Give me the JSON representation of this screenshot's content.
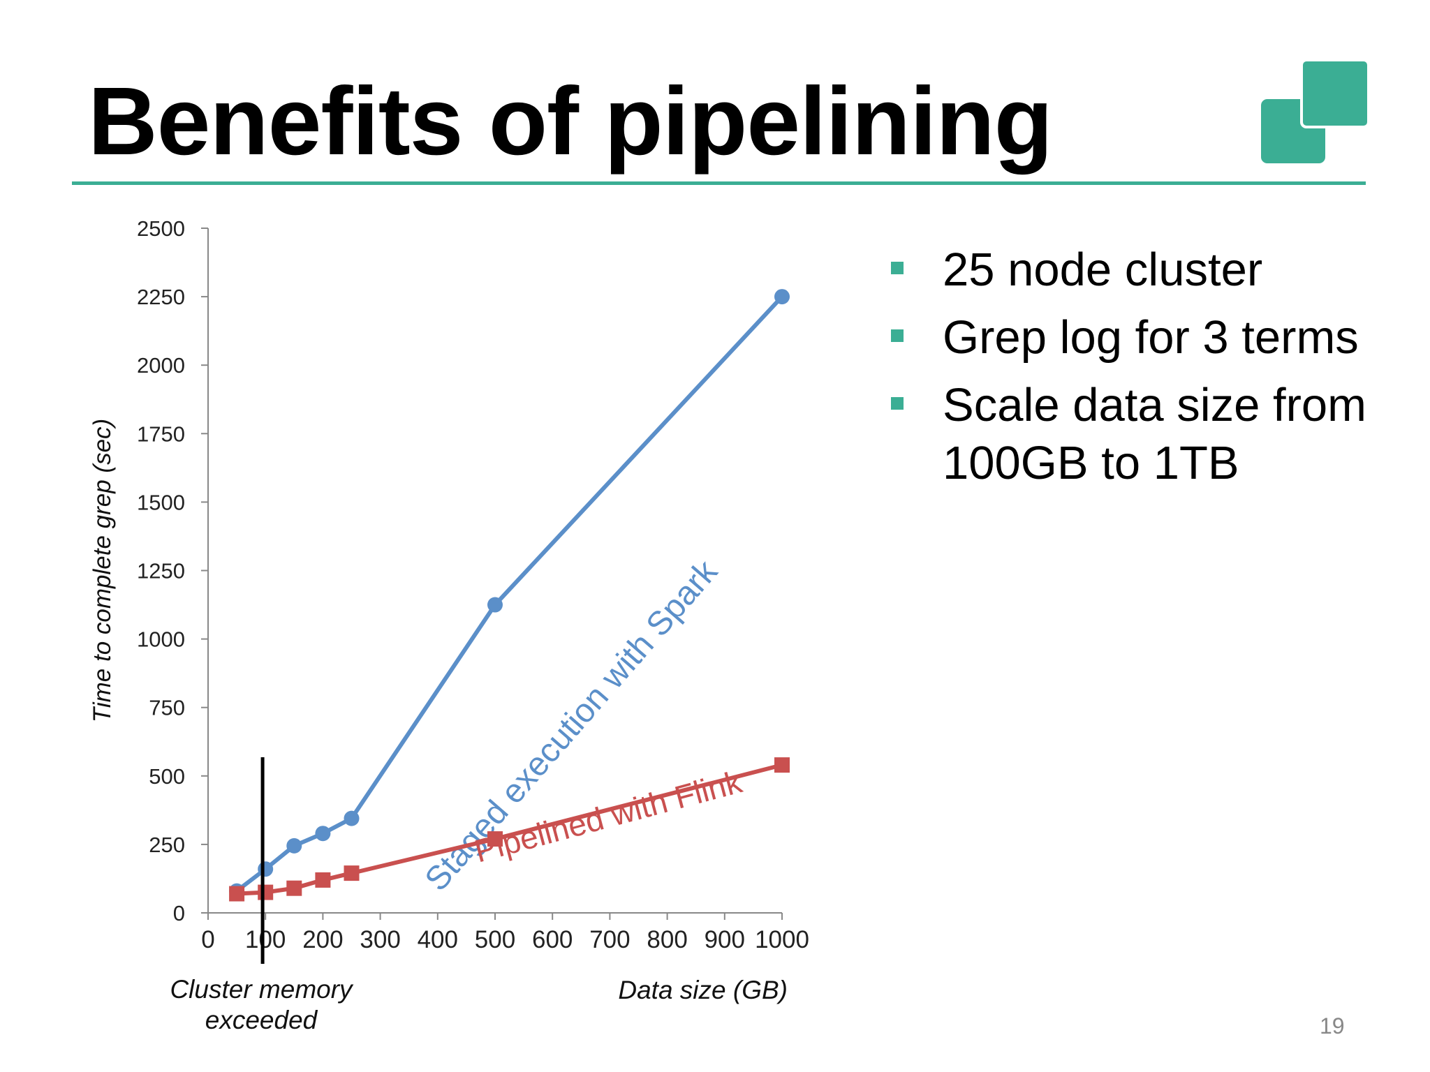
{
  "slide": {
    "title": "Benefits of pipelining",
    "page_number": "19",
    "accent_color": "#3bae94",
    "logo_icon": "overlapping-green-squares-icon"
  },
  "bullets": [
    {
      "text": "25 node cluster"
    },
    {
      "text": "Grep log for 3 terms"
    },
    {
      "text": "Scale data size from 100GB to 1TB"
    }
  ],
  "chart_data": {
    "type": "line",
    "title": "",
    "xlabel": "Data size (GB)",
    "ylabel": "Time to complete grep (sec)",
    "xlim": [
      0,
      1000
    ],
    "ylim": [
      0,
      2500
    ],
    "x_ticks": [
      0,
      100,
      200,
      300,
      400,
      500,
      600,
      700,
      800,
      900,
      1000
    ],
    "y_ticks": [
      0,
      250,
      500,
      750,
      1000,
      1250,
      1500,
      1750,
      2000,
      2250,
      2500
    ],
    "grid": false,
    "legend": "none",
    "series": [
      {
        "name": "Staged execution with Spark",
        "color": "#5b8fc9",
        "marker": "circle",
        "x": [
          50,
          100,
          150,
          200,
          250,
          500,
          1000
        ],
        "y": [
          80,
          160,
          245,
          290,
          345,
          1125,
          2250
        ]
      },
      {
        "name": "Pipelined with Flink",
        "color": "#c9504f",
        "marker": "square",
        "x": [
          50,
          100,
          150,
          200,
          250,
          500,
          1000
        ],
        "y": [
          70,
          75,
          90,
          120,
          145,
          270,
          540
        ]
      }
    ],
    "annotations": [
      {
        "text": "Cluster memory exceeded",
        "x": 95
      }
    ]
  }
}
